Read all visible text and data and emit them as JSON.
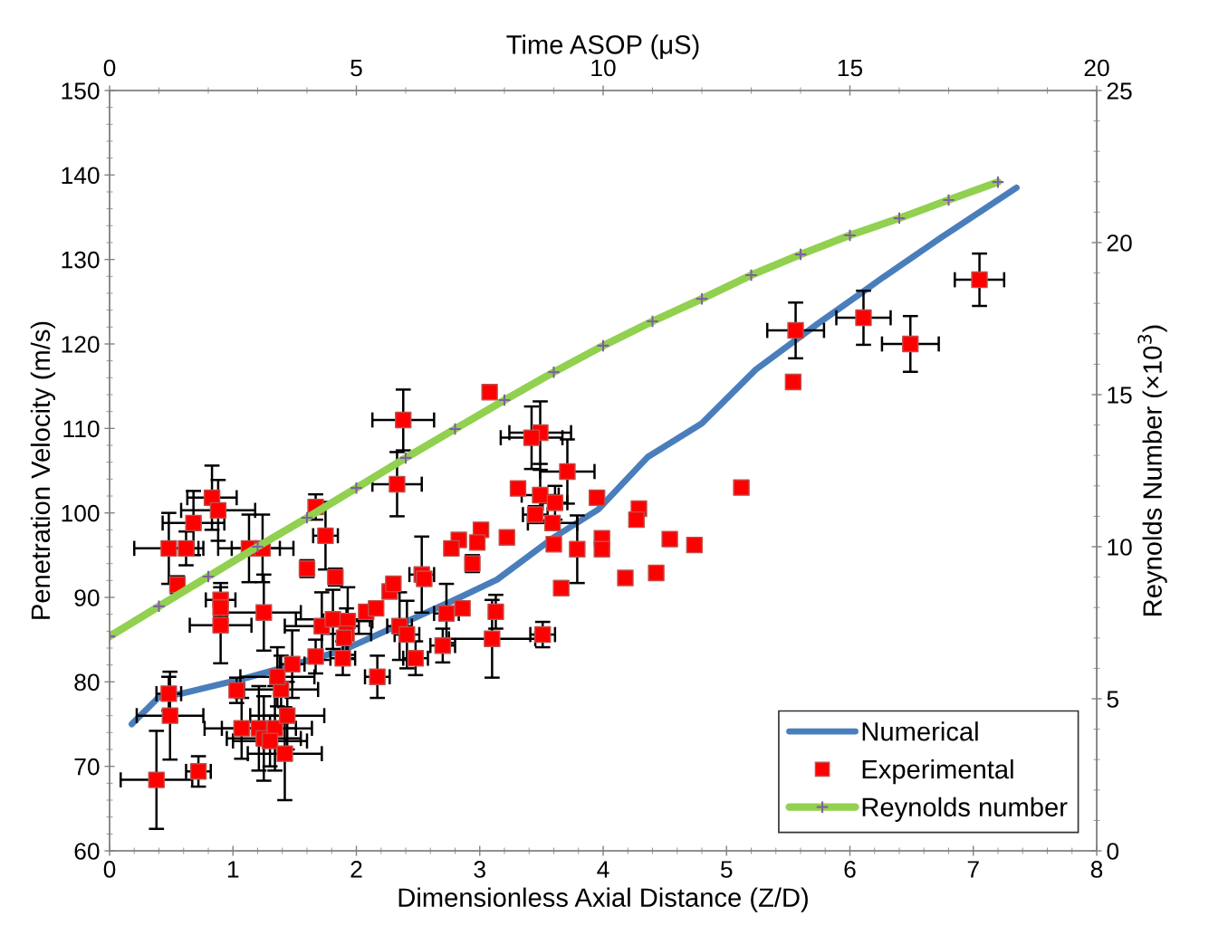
{
  "chart_data": {
    "type": "scatter",
    "xlabel": "Dimensionless Axial Distance (Z/D)",
    "ylabel": "Penetration Velocity (m/s)",
    "y2label": "Reynolds Number (×10$^{3}$)",
    "x2label": "Time ASOP (μS)",
    "xlim": [
      0,
      8
    ],
    "xticks": [
      0,
      1,
      2,
      3,
      4,
      5,
      6,
      7,
      8
    ],
    "ylim": [
      60,
      150
    ],
    "yticks": [
      60,
      70,
      80,
      90,
      100,
      110,
      120,
      130,
      140,
      150
    ],
    "y2lim": [
      0,
      25
    ],
    "y2ticks": [
      0,
      5,
      10,
      15,
      20,
      25
    ],
    "x2lim": [
      0,
      20
    ],
    "x2ticks": [
      0,
      5,
      10,
      15,
      20
    ],
    "grid": false,
    "legend": "bottom right",
    "series": [
      {
        "name": "Numerical",
        "type": "line",
        "color": "#4a7ebb",
        "marker": "none",
        "line_style": "solid",
        "x": [
          0.18,
          0.4,
          0.58,
          1.09,
          1.46,
          1.9,
          2.78,
          3.14,
          3.59,
          3.96,
          4.36,
          4.8,
          5.24,
          5.75,
          6.08,
          6.27,
          6.75,
          7.35
        ],
        "values": [
          75.0,
          78.2,
          78.6,
          80.4,
          81.9,
          83.8,
          89.6,
          92.1,
          97.0,
          100.4,
          106.6,
          110.6,
          117.0,
          122.5,
          125.9,
          127.9,
          132.7,
          138.5
        ]
      },
      {
        "name": "Experimental",
        "color": "#ff0000",
        "marker": "square",
        "x": [
          0.38,
          0.72,
          0.49,
          0.48,
          0.48,
          0.62,
          0.55,
          0.68,
          0.83,
          0.88,
          0.9,
          0.9,
          0.9,
          1.13,
          1.24,
          1.25,
          1.03,
          1.07,
          1.21,
          1.25,
          1.34,
          1.3,
          1.42,
          1.44,
          1.39,
          1.36,
          1.48,
          1.67,
          1.89,
          1.72,
          1.81,
          1.93,
          1.92,
          1.9,
          1.83,
          1.6,
          1.75,
          1.67,
          2.33,
          2.38,
          2.17,
          2.08,
          2.16,
          2.27,
          2.3,
          2.35,
          2.41,
          2.48,
          2.53,
          2.55,
          2.7,
          2.73,
          3.08,
          3.49,
          3.42,
          3.71,
          3.31,
          3.49,
          3.61,
          3.95,
          3.45,
          3.59,
          4.29,
          4.27,
          3.01,
          3.22,
          2.83,
          2.98,
          2.77,
          3.6,
          3.79,
          3.99,
          3.99,
          4.54,
          4.74,
          2.94,
          3.66,
          4.18,
          4.43,
          3.13,
          2.86,
          3.1,
          3.51,
          5.12,
          5.54,
          5.56,
          6.11,
          6.49,
          7.05
        ],
        "values": [
          68.4,
          69.4,
          76.0,
          78.6,
          95.8,
          95.8,
          91.5,
          98.8,
          101.8,
          100.3,
          89.7,
          88.8,
          86.7,
          95.8,
          95.8,
          88.2,
          79.0,
          74.5,
          74.5,
          73.3,
          74.5,
          73.0,
          71.5,
          76.0,
          79.1,
          80.6,
          82.1,
          83.0,
          82.8,
          86.6,
          87.4,
          87.2,
          85.7,
          85.2,
          92.4,
          93.4,
          97.3,
          100.7,
          103.4,
          111.0,
          80.6,
          88.3,
          88.7,
          90.7,
          91.6,
          86.6,
          85.6,
          82.8,
          92.7,
          92.2,
          84.3,
          88.1,
          114.3,
          109.5,
          108.9,
          104.9,
          102.9,
          102.1,
          101.2,
          101.8,
          99.8,
          98.8,
          100.5,
          99.2,
          98.0,
          97.1,
          96.8,
          96.5,
          95.8,
          96.3,
          95.7,
          97.0,
          95.7,
          96.9,
          96.2,
          94.0,
          91.1,
          92.3,
          92.9,
          88.3,
          88.7,
          85.1,
          85.6,
          103.0,
          115.5,
          121.6,
          123.1,
          120.0,
          127.6
        ],
        "errors": [
          5.8,
          1.8,
          5.2,
          2.0,
          4.2,
          2.0,
          1.0,
          3.8,
          3.8,
          3.6,
          2.0,
          null,
          4.5,
          4.0,
          4.0,
          4.5,
          1.5,
          3.6,
          5.0,
          5.0,
          5.0,
          3.0,
          5.5,
          4.0,
          4.0,
          3.5,
          4.0,
          2.0,
          2.0,
          4.0,
          3.5,
          4.0,
          3.0,
          null,
          1.0,
          1.0,
          4.0,
          1.5,
          3.8,
          3.6,
          2.5,
          null,
          null,
          null,
          null,
          4.0,
          4.0,
          2.0,
          4.5,
          null,
          2.0,
          3.5,
          null,
          3.7,
          3.7,
          3.8,
          null,
          3.0,
          2.0,
          null,
          1.0,
          null,
          null,
          null,
          null,
          null,
          null,
          null,
          null,
          null,
          4.0,
          null,
          null,
          null,
          null,
          1.0,
          null,
          null,
          null,
          2.0,
          null,
          4.6,
          1.5,
          null,
          null,
          3.3,
          3.2,
          3.3,
          3.1
        ],
        "xerrors": [
          0.29,
          0.1,
          0.27,
          0.1,
          0.28,
          0.1,
          null,
          0.25,
          0.2,
          0.3,
          0.12,
          null,
          0.25,
          0.25,
          0.25,
          0.3,
          null,
          0.3,
          0.3,
          0.3,
          0.3,
          0.3,
          0.3,
          0.3,
          0.3,
          0.3,
          0.1,
          null,
          0.1,
          0.3,
          0.3,
          0.2,
          0.2,
          null,
          null,
          null,
          0.1,
          null,
          0.2,
          0.25,
          0.1,
          null,
          null,
          null,
          null,
          0.1,
          0.1,
          0.1,
          0.1,
          null,
          0.1,
          0.1,
          null,
          0.25,
          0.25,
          0.22,
          null,
          0.15,
          0.1,
          null,
          0.1,
          0.2,
          null,
          null,
          null,
          null,
          null,
          null,
          null,
          null,
          null,
          null,
          null,
          null,
          null,
          null,
          null,
          null,
          null,
          null,
          null,
          0.35,
          0.1,
          null,
          null,
          0.23,
          0.22,
          0.23,
          0.2
        ]
      },
      {
        "name": "Reynolds number",
        "type": "line",
        "axis": "y2",
        "color": "#92d050",
        "marker": "cross",
        "line_style": "solid",
        "x": [
          0,
          0.4,
          0.8,
          1.2,
          1.6,
          2.0,
          2.4,
          2.8,
          3.2,
          3.6,
          4.0,
          4.4,
          4.8,
          5.2,
          5.6,
          6.0,
          6.4,
          6.8,
          7.2
        ],
        "values": [
          7.05,
          8.04,
          9.02,
          10.0,
          10.95,
          11.93,
          12.92,
          13.87,
          14.82,
          15.74,
          16.61,
          17.41,
          18.15,
          18.93,
          19.61,
          20.24,
          20.8,
          21.4,
          21.99
        ]
      }
    ]
  }
}
